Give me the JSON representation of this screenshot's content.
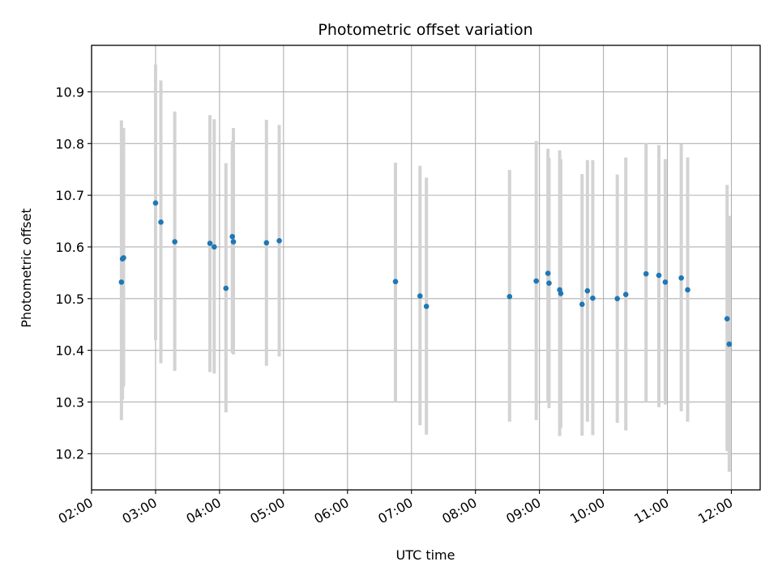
{
  "chart_data": {
    "type": "scatter",
    "title": "Photometric offset variation",
    "xlabel": "UTC time",
    "ylabel": "Photometric offset",
    "x_tick_labels": [
      "02:00",
      "03:00",
      "04:00",
      "05:00",
      "06:00",
      "07:00",
      "08:00",
      "09:00",
      "10:00",
      "11:00",
      "12:00"
    ],
    "y_tick_labels": [
      "10.2",
      "10.3",
      "10.4",
      "10.5",
      "10.6",
      "10.7",
      "10.8",
      "10.9"
    ],
    "x_ticks": [
      "02:00",
      "03:00",
      "04:00",
      "05:00",
      "06:00",
      "07:00",
      "08:00",
      "09:00",
      "10:00",
      "11:00",
      "12:00"
    ],
    "y_ticks": [
      10.2,
      10.3,
      10.4,
      10.5,
      10.6,
      10.7,
      10.8,
      10.9
    ],
    "xlim": [
      "02:00",
      "12:27"
    ],
    "ylim": [
      10.13,
      10.99
    ],
    "grid": true,
    "point_color": "#1f77b4",
    "errorbar_color": "#d3d3d3",
    "points": [
      {
        "x": "02:28",
        "y": 10.532,
        "low": 10.265,
        "high": 10.845
      },
      {
        "x": "02:29",
        "y": 10.577,
        "low": 10.305,
        "high": 10.795
      },
      {
        "x": "02:30",
        "y": 10.579,
        "low": 10.33,
        "high": 10.83
      },
      {
        "x": "03:00",
        "y": 10.685,
        "low": 10.42,
        "high": 10.953
      },
      {
        "x": "03:05",
        "y": 10.648,
        "low": 10.375,
        "high": 10.922
      },
      {
        "x": "03:18",
        "y": 10.61,
        "low": 10.36,
        "high": 10.862
      },
      {
        "x": "03:51",
        "y": 10.607,
        "low": 10.358,
        "high": 10.855
      },
      {
        "x": "03:55",
        "y": 10.6,
        "low": 10.355,
        "high": 10.847
      },
      {
        "x": "04:06",
        "y": 10.52,
        "low": 10.28,
        "high": 10.762
      },
      {
        "x": "04:12",
        "y": 10.62,
        "low": 10.395,
        "high": 10.805
      },
      {
        "x": "04:13",
        "y": 10.61,
        "low": 10.392,
        "high": 10.83
      },
      {
        "x": "04:44",
        "y": 10.608,
        "low": 10.37,
        "high": 10.846
      },
      {
        "x": "04:56",
        "y": 10.612,
        "low": 10.388,
        "high": 10.836
      },
      {
        "x": "06:45",
        "y": 10.533,
        "low": 10.3,
        "high": 10.763
      },
      {
        "x": "07:08",
        "y": 10.505,
        "low": 10.255,
        "high": 10.757
      },
      {
        "x": "07:14",
        "y": 10.485,
        "low": 10.237,
        "high": 10.734
      },
      {
        "x": "08:32",
        "y": 10.504,
        "low": 10.262,
        "high": 10.749
      },
      {
        "x": "08:57",
        "y": 10.534,
        "low": 10.265,
        "high": 10.805
      },
      {
        "x": "09:08",
        "y": 10.549,
        "low": 10.3,
        "high": 10.79
      },
      {
        "x": "09:09",
        "y": 10.53,
        "low": 10.288,
        "high": 10.772
      },
      {
        "x": "09:19",
        "y": 10.517,
        "low": 10.234,
        "high": 10.787
      },
      {
        "x": "09:20",
        "y": 10.51,
        "low": 10.25,
        "high": 10.77
      },
      {
        "x": "09:40",
        "y": 10.489,
        "low": 10.235,
        "high": 10.741
      },
      {
        "x": "09:45",
        "y": 10.515,
        "low": 10.262,
        "high": 10.768
      },
      {
        "x": "09:50",
        "y": 10.501,
        "low": 10.236,
        "high": 10.768
      },
      {
        "x": "10:13",
        "y": 10.5,
        "low": 10.26,
        "high": 10.74
      },
      {
        "x": "10:21",
        "y": 10.508,
        "low": 10.245,
        "high": 10.773
      },
      {
        "x": "10:40",
        "y": 10.548,
        "low": 10.3,
        "high": 10.8
      },
      {
        "x": "10:52",
        "y": 10.545,
        "low": 10.29,
        "high": 10.797
      },
      {
        "x": "10:58",
        "y": 10.532,
        "low": 10.295,
        "high": 10.77
      },
      {
        "x": "11:13",
        "y": 10.54,
        "low": 10.282,
        "high": 10.799
      },
      {
        "x": "11:19",
        "y": 10.517,
        "low": 10.262,
        "high": 10.773
      },
      {
        "x": "11:56",
        "y": 10.461,
        "low": 10.205,
        "high": 10.72
      },
      {
        "x": "11:58",
        "y": 10.412,
        "low": 10.165,
        "high": 10.66
      }
    ]
  }
}
